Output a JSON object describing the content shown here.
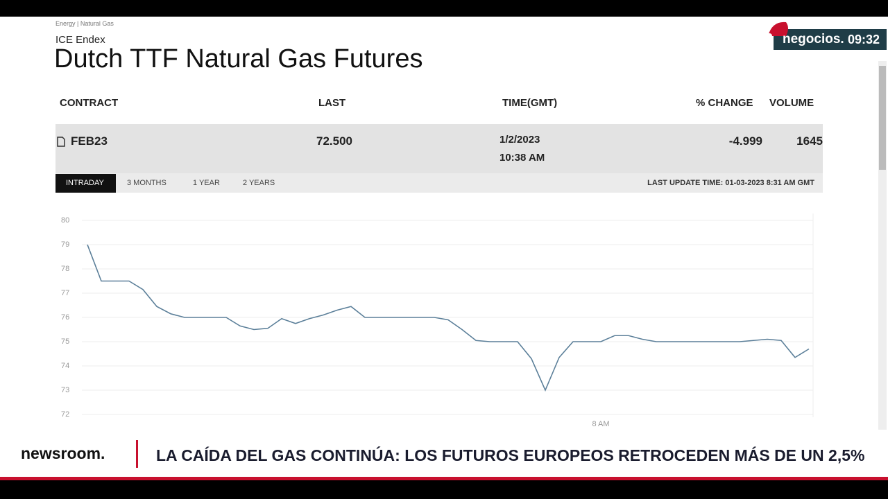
{
  "breadcrumb": "Energy  |  Natural Gas",
  "exchange": "ICE Endex",
  "title": "Dutch TTF Natural Gas Futures",
  "table": {
    "headers": [
      "CONTRACT",
      "LAST",
      "TIME(GMT)",
      "% CHANGE",
      "VOLUME"
    ],
    "row": {
      "contract": "FEB23",
      "last": "72.500",
      "date": "1/2/2023",
      "time": "10:38 AM",
      "change": "-4.999",
      "volume": "1645"
    }
  },
  "tabs": [
    "INTRADAY",
    "3 MONTHS",
    "1 YEAR",
    "2 YEARS"
  ],
  "last_update": "LAST UPDATE TIME: 01-03-2023 8:31 AM GMT",
  "chart_data": {
    "type": "line",
    "color": "#5b7f99",
    "grid": true,
    "ylim": [
      72,
      80
    ],
    "yticks": [
      72,
      73,
      74,
      75,
      76,
      77,
      78,
      79,
      80
    ],
    "categories": [
      null,
      null,
      null,
      null,
      null,
      null,
      null,
      null,
      null,
      null,
      null,
      null,
      null,
      null,
      null,
      null,
      null,
      null,
      null,
      null,
      null,
      null,
      null,
      null,
      null,
      null,
      null,
      null,
      null,
      null,
      null,
      null,
      null,
      null,
      null,
      null,
      null,
      "8 AM",
      null,
      null,
      null,
      null,
      null,
      null,
      null,
      null,
      null,
      null,
      null,
      null,
      null,
      null,
      null
    ],
    "values": [
      79,
      77.5,
      77.5,
      77.5,
      77.15,
      76.45,
      76.15,
      76,
      76,
      76,
      76,
      75.65,
      75.5,
      75.55,
      75.95,
      75.75,
      75.95,
      76.1,
      76.3,
      76.45,
      76,
      76,
      76,
      76,
      76,
      76,
      75.9,
      75.5,
      75.05,
      75,
      75,
      75,
      74.3,
      73,
      74.35,
      75,
      75,
      75,
      75.25,
      75.25,
      75.1,
      75,
      75,
      75,
      75,
      75,
      75,
      75,
      75.05,
      75.1,
      75.05,
      74.35,
      74.7
    ]
  },
  "overlay": {
    "logo": "negocios.",
    "clock": "09:32"
  },
  "ticker": {
    "brand": "newsroom.",
    "headline": "LA CAÍDA DEL GAS CONTINÚA: LOS FUTUROS EUROPEOS RETROCEDEN MÁS DE UN 2,5%"
  }
}
